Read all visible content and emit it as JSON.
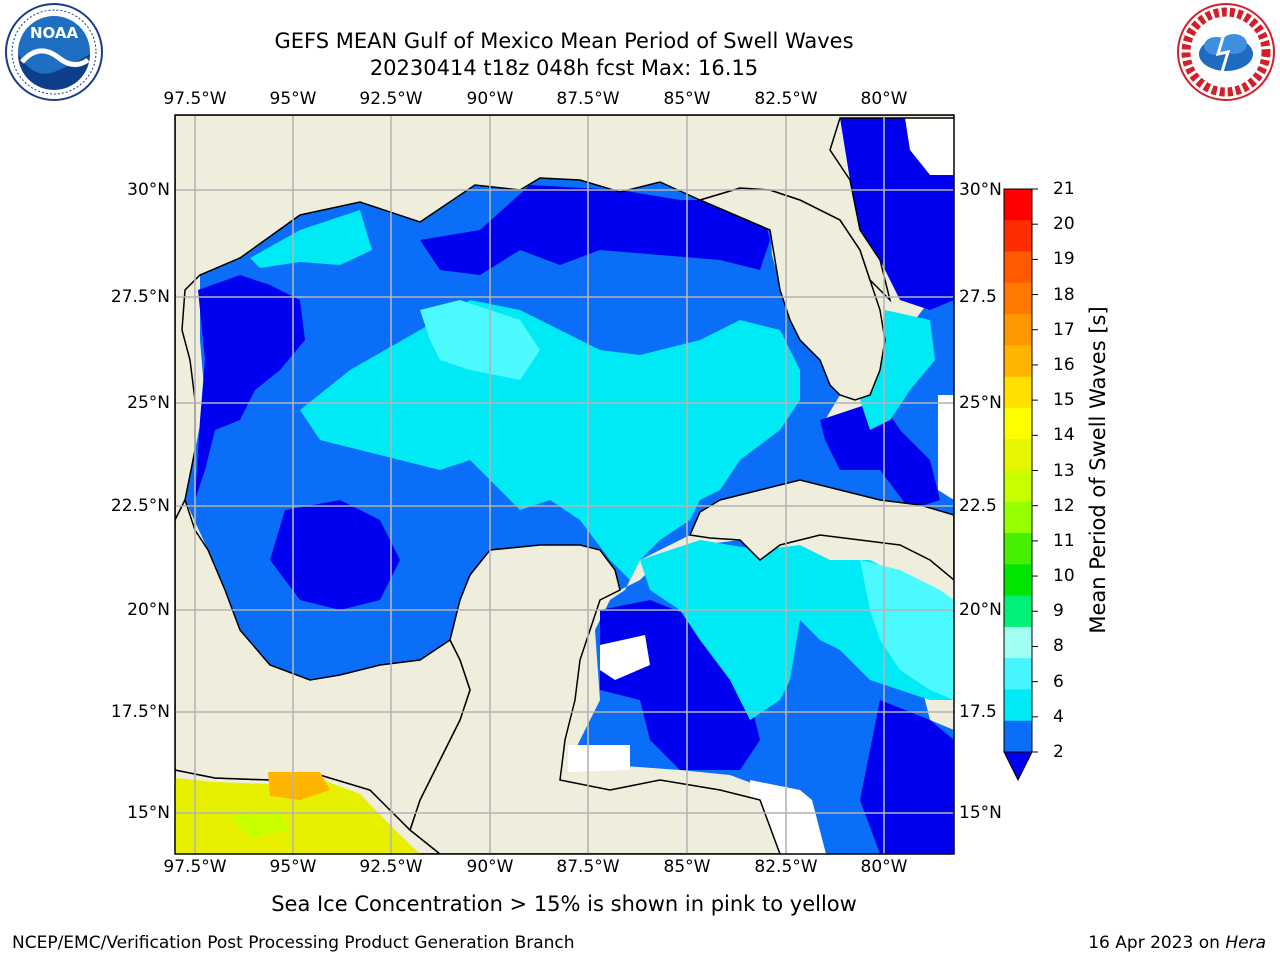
{
  "header": {
    "title_line1": "GEFS MEAN Gulf of Mexico Mean Period of Swell Waves",
    "title_line2": "20230414 t18z 048h fcst   Max: 16.15"
  },
  "logos": {
    "left": "noaa-logo",
    "right": "national-weather-service-logo"
  },
  "map": {
    "lon_labels": [
      "97.5°W",
      "95°W",
      "92.5°W",
      "90°W",
      "87.5°W",
      "85°W",
      "82.5°W",
      "80°W"
    ],
    "lat_labels_left": [
      "30°N",
      "27.5°N",
      "25°N",
      "22.5°N",
      "20°N",
      "17.5°N",
      "15°N"
    ],
    "lat_labels_right": [
      "30°N",
      "27.5",
      "25°N",
      "22.5",
      "20°N",
      "17.5",
      "15°N"
    ],
    "colors": {
      "land": "#efeedc",
      "coast": "#000000",
      "grid": "#b4b4b4",
      "frame": "#000000",
      "period_2_4": "#0000f0",
      "period_4_6": "#0a6ef8",
      "period_6_8": "#00eaf5",
      "period_8_9": "#4afaff",
      "ice_yellow": "#e6f000",
      "ice_orange": "#ffb400"
    }
  },
  "colorbar": {
    "title": "Mean Period of Swell Waves [s]",
    "tick_labels": [
      "21",
      "20",
      "19",
      "18",
      "17",
      "16",
      "15",
      "14",
      "13",
      "12",
      "11",
      "10",
      "9",
      "8",
      "6",
      "4",
      "2"
    ],
    "colors_top_to_bottom": [
      "#ff0000",
      "#ff2e00",
      "#ff5a00",
      "#ff7800",
      "#ff9800",
      "#ffb400",
      "#ffe000",
      "#ffff00",
      "#e6f500",
      "#c8ff00",
      "#96ff00",
      "#46f000",
      "#00e600",
      "#00f078",
      "#a0fff0",
      "#46f5ff",
      "#00eaf5",
      "#0a6ef8"
    ],
    "extend_color": "#0000f0"
  },
  "caption": "Sea Ice Concentration > 15% is shown in pink to yellow",
  "footer": {
    "left": "NCEP/EMC/Verification Post Processing Product Generation Branch",
    "right_date": "16 Apr 2023 on ",
    "right_machine": "Hera"
  }
}
